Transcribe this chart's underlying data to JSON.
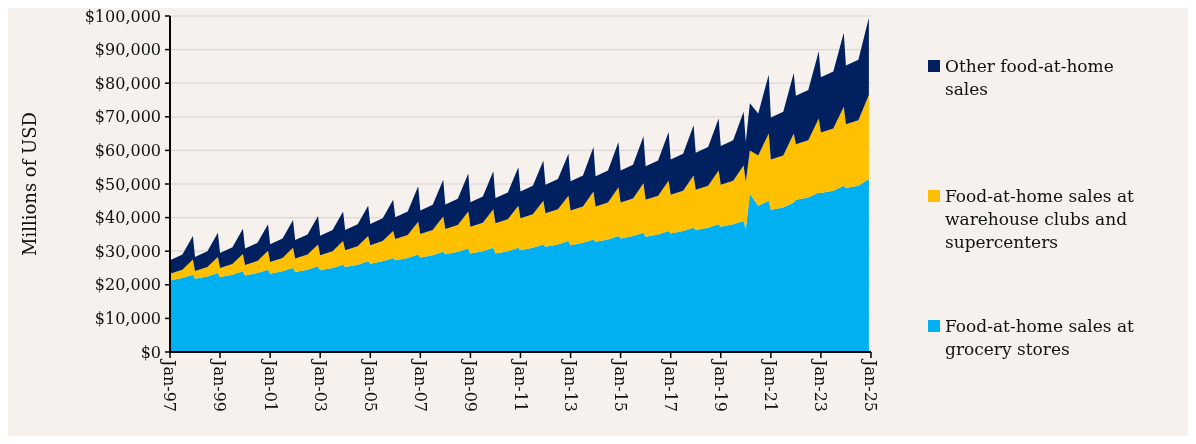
{
  "chart_data": {
    "type": "area",
    "stacked": true,
    "ylabel": "Millions of USD",
    "x": [
      "1997-01",
      "1997-07",
      "1997-12",
      "1998-01",
      "1998-07",
      "1998-12",
      "1999-01",
      "1999-07",
      "1999-12",
      "2000-01",
      "2000-07",
      "2000-12",
      "2001-01",
      "2001-07",
      "2001-12",
      "2002-01",
      "2002-07",
      "2002-12",
      "2003-01",
      "2003-07",
      "2003-12",
      "2004-01",
      "2004-07",
      "2004-12",
      "2005-01",
      "2005-07",
      "2005-12",
      "2006-01",
      "2006-07",
      "2006-12",
      "2007-01",
      "2007-07",
      "2007-12",
      "2008-01",
      "2008-07",
      "2008-12",
      "2009-01",
      "2009-07",
      "2009-12",
      "2010-01",
      "2010-07",
      "2010-12",
      "2011-01",
      "2011-07",
      "2011-12",
      "2012-01",
      "2012-07",
      "2012-12",
      "2013-01",
      "2013-07",
      "2013-12",
      "2014-01",
      "2014-07",
      "2014-12",
      "2015-01",
      "2015-07",
      "2015-12",
      "2016-01",
      "2016-07",
      "2016-12",
      "2017-01",
      "2017-07",
      "2017-12",
      "2018-01",
      "2018-07",
      "2018-12",
      "2019-01",
      "2019-07",
      "2019-12",
      "2020-01",
      "2020-03",
      "2020-07",
      "2020-12",
      "2021-01",
      "2021-07",
      "2021-12",
      "2022-01",
      "2022-07",
      "2022-12",
      "2023-01",
      "2023-07",
      "2023-12",
      "2024-01",
      "2024-07",
      "2024-12"
    ],
    "series": [
      {
        "name": "Food-at-home sales at grocery stores",
        "color": "#00b0f0",
        "values": [
          21300,
          22000,
          23000,
          21800,
          22500,
          23500,
          22300,
          23000,
          24000,
          22800,
          23500,
          24500,
          23300,
          24000,
          25000,
          23800,
          24500,
          25500,
          24300,
          25000,
          26000,
          25300,
          26000,
          27000,
          26300,
          27000,
          28000,
          27300,
          28000,
          29000,
          28100,
          28800,
          29800,
          29100,
          29800,
          30800,
          29300,
          30000,
          31000,
          29300,
          30000,
          31000,
          30300,
          31000,
          32000,
          31300,
          32000,
          33000,
          31800,
          32500,
          33500,
          32800,
          33500,
          34500,
          33800,
          34500,
          35500,
          34300,
          35000,
          36000,
          35300,
          36000,
          37000,
          36300,
          37000,
          38000,
          37300,
          38000,
          39000,
          36500,
          47000,
          43500,
          45000,
          42300,
          43000,
          44500,
          45300,
          46000,
          47500,
          47300,
          48000,
          49500,
          48800,
          49500,
          51500
        ]
      },
      {
        "name": "Food-at-home sales at warehouse clubs and supercenters",
        "color": "#ffc000",
        "values": [
          2000,
          2500,
          4500,
          2300,
          2800,
          4800,
          2700,
          3200,
          5200,
          3100,
          3600,
          5600,
          3500,
          4000,
          6000,
          4000,
          4500,
          6500,
          4500,
          5000,
          7000,
          5000,
          5500,
          7500,
          5500,
          6000,
          8000,
          6300,
          6800,
          9800,
          7000,
          7500,
          10500,
          7500,
          8000,
          11000,
          8000,
          8500,
          11500,
          9000,
          9500,
          12500,
          9500,
          10000,
          13000,
          10000,
          10500,
          13500,
          10300,
          10800,
          14300,
          10500,
          11000,
          14500,
          10700,
          11200,
          14700,
          11000,
          11500,
          15000,
          11500,
          12000,
          15500,
          12000,
          12500,
          16000,
          12500,
          13000,
          16500,
          14000,
          13000,
          15000,
          20000,
          15000,
          15500,
          20500,
          16500,
          17000,
          22000,
          18000,
          18500,
          23500,
          19000,
          19500,
          25000
        ]
      },
      {
        "name": "Other food-at-home sales",
        "color": "#002060",
        "values": [
          4000,
          4500,
          7000,
          4200,
          4700,
          7200,
          4500,
          5000,
          7500,
          4900,
          5400,
          7900,
          5300,
          5800,
          8300,
          5500,
          6000,
          8500,
          5800,
          6300,
          8800,
          6000,
          6500,
          9000,
          6300,
          6800,
          9300,
          6500,
          7000,
          10500,
          7000,
          7500,
          11000,
          7300,
          7800,
          11300,
          7300,
          7800,
          11300,
          7500,
          8000,
          11500,
          8000,
          8500,
          12000,
          8500,
          9000,
          12500,
          8700,
          9200,
          13200,
          9000,
          9500,
          13500,
          9500,
          10000,
          14000,
          10000,
          10500,
          14500,
          10500,
          11000,
          15000,
          11000,
          11500,
          15500,
          11500,
          12000,
          16000,
          12000,
          14000,
          12500,
          17500,
          12500,
          13000,
          18000,
          14500,
          15000,
          20000,
          16500,
          17000,
          22000,
          17500,
          18000,
          23000
        ]
      }
    ],
    "xlim": [
      "1997-01",
      "2025-01"
    ],
    "xticks": [
      {
        "value": "1997-01",
        "label": "Jan-97"
      },
      {
        "value": "1999-01",
        "label": "Jan-99"
      },
      {
        "value": "2001-01",
        "label": "Jan-01"
      },
      {
        "value": "2003-01",
        "label": "Jan-03"
      },
      {
        "value": "2005-01",
        "label": "Jan-05"
      },
      {
        "value": "2007-01",
        "label": "Jan-07"
      },
      {
        "value": "2009-01",
        "label": "Jan-09"
      },
      {
        "value": "2011-01",
        "label": "Jan-11"
      },
      {
        "value": "2013-01",
        "label": "Jan-13"
      },
      {
        "value": "2015-01",
        "label": "Jan-15"
      },
      {
        "value": "2017-01",
        "label": "Jan-17"
      },
      {
        "value": "2019-01",
        "label": "Jan-19"
      },
      {
        "value": "2021-01",
        "label": "Jan-21"
      },
      {
        "value": "2023-01",
        "label": "Jan-23"
      },
      {
        "value": "2025-01",
        "label": "Jan-25"
      }
    ],
    "ylim": [
      0,
      100000
    ],
    "yticks": [
      {
        "value": 0,
        "label": "$0"
      },
      {
        "value": 10000,
        "label": "$10,000"
      },
      {
        "value": 20000,
        "label": "$20,000"
      },
      {
        "value": 30000,
        "label": "$30,000"
      },
      {
        "value": 40000,
        "label": "$40,000"
      },
      {
        "value": 50000,
        "label": "$50,000"
      },
      {
        "value": 60000,
        "label": "$60,000"
      },
      {
        "value": 70000,
        "label": "$70,000"
      },
      {
        "value": 80000,
        "label": "$80,000"
      },
      {
        "value": 90000,
        "label": "$90,000"
      },
      {
        "value": 100000,
        "label": "$100,000"
      }
    ],
    "grid": "y",
    "legend": "right"
  }
}
